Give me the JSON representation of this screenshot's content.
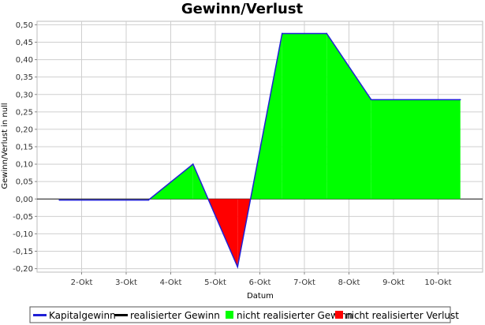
{
  "chart_data": {
    "type": "area",
    "title": "Gewinn/Verlust",
    "xlabel": "Datum",
    "ylabel": "Gewinn/Verlust in null",
    "categories": [
      "2-Okt",
      "3-Okt",
      "4-Okt",
      "5-Okt",
      "6-Okt",
      "7-Okt",
      "8-Okt",
      "9-Okt",
      "10-Okt"
    ],
    "ylim": [
      -0.21,
      0.51
    ],
    "yticks": [
      "-0,20",
      "-0,15",
      "-0,10",
      "-0,05",
      "0,00",
      "0,05",
      "0,10",
      "0,15",
      "0,20",
      "0,25",
      "0,30",
      "0,35",
      "0,40",
      "0,45",
      "0,50"
    ],
    "grid": true,
    "legend_position": "bottom",
    "series": [
      {
        "name": "Kapitalgewinn",
        "color": "#1f1fd6",
        "points": [
          [
            1.5,
            -0.003
          ],
          [
            3.5,
            -0.003
          ],
          [
            4.5,
            0.1
          ],
          [
            5.5,
            -0.195
          ],
          [
            6.5,
            0.475
          ],
          [
            7.5,
            0.475
          ],
          [
            8.5,
            0.285
          ],
          [
            10.5,
            0.285
          ]
        ]
      },
      {
        "name": "realisierter Gewinn",
        "color": "#000000",
        "points": []
      },
      {
        "name": "nicht realisierter Gewinn",
        "color": "#00ff00",
        "points": []
      },
      {
        "name": "nicht realisierter Verlust",
        "color": "#ff0000",
        "points": []
      }
    ]
  }
}
